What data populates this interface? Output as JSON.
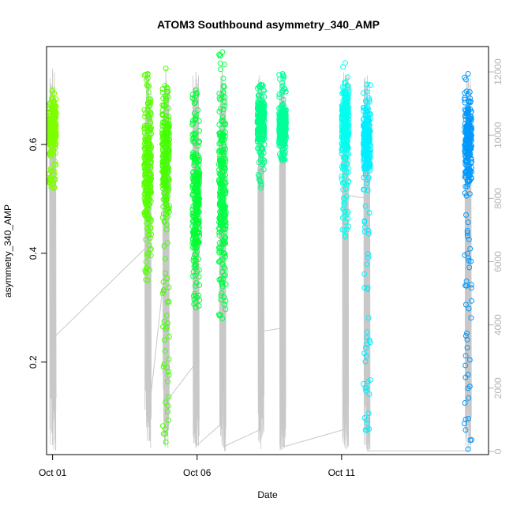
{
  "chart_data": {
    "type": "scatter",
    "title": "ATOM3 Southbound asymmetry_340_AMP",
    "xlabel": "Date",
    "ylabel": "asymmetry_340_AMP",
    "xlim": [
      "2016-09-30T19:00",
      "2016-10-16T02:00"
    ],
    "ylim": [
      0.03,
      0.78
    ],
    "x_ticks": [
      {
        "label": "Oct 01",
        "value": "2016-10-01"
      },
      {
        "label": "Oct 06",
        "value": "2016-10-06"
      },
      {
        "label": "Oct 11",
        "value": "2016-10-11"
      }
    ],
    "y_ticks": [
      0.2,
      0.4,
      0.6
    ],
    "y2_lim": [
      -100,
      12800
    ],
    "y2_ticks": [
      0,
      2000,
      4000,
      6000,
      8000,
      10000,
      12000
    ],
    "y2_color": "#b4b4b4",
    "grid": false,
    "legend": "none",
    "series": [
      {
        "x": "2016-10-01T00:00",
        "y": [
          0.52,
          0.7
        ],
        "center": 0.63,
        "color": "#7fff00"
      },
      {
        "x": "2016-10-04T07:00",
        "y": [
          0.35,
          0.73
        ],
        "center": 0.55,
        "color": "#55ff00"
      },
      {
        "x": "2016-10-04T22:00",
        "y": [
          0.053,
          0.74
        ],
        "center": 0.58,
        "color": "#44ff00"
      },
      {
        "x": "2016-10-05T23:00",
        "y": [
          0.3,
          0.7
        ],
        "center": 0.5,
        "color": "#00ff33"
      },
      {
        "x": "2016-10-06T21:00",
        "y": [
          0.28,
          0.77
        ],
        "center": 0.52,
        "color": "#00ff44"
      },
      {
        "x": "2016-10-08T05:00",
        "y": [
          0.52,
          0.71
        ],
        "center": 0.64,
        "color": "#00ff88"
      },
      {
        "x": "2016-10-08T23:00",
        "y": [
          0.57,
          0.73
        ],
        "center": 0.63,
        "color": "#00ff99"
      },
      {
        "x": "2016-10-11T03:00",
        "y": [
          0.43,
          0.75
        ],
        "center": 0.64,
        "color": "#00ffee"
      },
      {
        "x": "2016-10-11T21:00",
        "y": [
          0.075,
          0.71
        ],
        "center": 0.61,
        "color": "#00eeff"
      },
      {
        "x": "2016-10-15T09:00",
        "y": [
          0.04,
          0.73
        ],
        "center": 0.61,
        "color": "#0099ff"
      }
    ],
    "secondary_line": {
      "color": "#c8c8c8",
      "points": [
        [
          "2016-10-01T00:00",
          200
        ],
        [
          "2016-10-01T00:00",
          12100
        ],
        [
          "2016-10-01T01:00",
          3600
        ],
        [
          "2016-10-04T07:00",
          6500
        ],
        [
          "2016-10-04T07:00",
          12000
        ],
        [
          "2016-10-04T08:00",
          1200
        ],
        [
          "2016-10-04T22:00",
          6100
        ],
        [
          "2016-10-04T22:00",
          12100
        ],
        [
          "2016-10-04T23:00",
          1600
        ],
        [
          "2016-10-05T23:00",
          2800
        ],
        [
          "2016-10-05T23:00",
          12000
        ],
        [
          "2016-10-06T00:00",
          200
        ],
        [
          "2016-10-06T21:00",
          900
        ],
        [
          "2016-10-06T21:00",
          12100
        ],
        [
          "2016-10-06T22:00",
          150
        ],
        [
          "2016-10-08T05:00",
          700
        ],
        [
          "2016-10-08T05:00",
          11600
        ],
        [
          "2016-10-08T06:00",
          3800
        ],
        [
          "2016-10-08T23:00",
          3900
        ],
        [
          "2016-10-08T23:00",
          11700
        ],
        [
          "2016-10-09T00:00",
          150
        ],
        [
          "2016-10-11T03:00",
          700
        ],
        [
          "2016-10-11T03:00",
          11900
        ],
        [
          "2016-10-11T04:00",
          8100
        ],
        [
          "2016-10-11T21:00",
          8000
        ],
        [
          "2016-10-11T21:00",
          11700
        ],
        [
          "2016-10-11T22:00",
          20
        ],
        [
          "2016-10-15T09:00",
          20
        ],
        [
          "2016-10-15T09:00",
          11900
        ],
        [
          "2016-10-15T10:00",
          400
        ]
      ]
    }
  }
}
